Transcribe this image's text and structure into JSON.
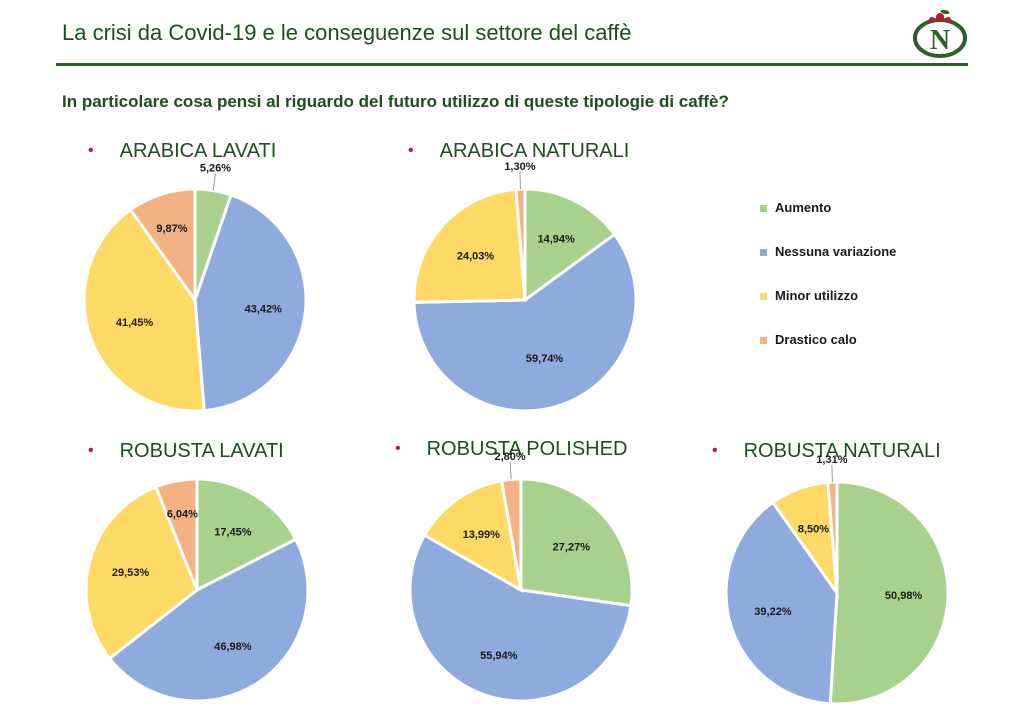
{
  "header": {
    "title": "La crisi da Covid-19 e le conseguenze sul settore del caffè",
    "question": "In particolare cosa pensi al riguardo del futuro utilizzo di queste tipologie di caffè?",
    "logo_text": "N",
    "bullet": "•"
  },
  "colors": {
    "Aumento": "#a9d18e",
    "Nessuna variazione": "#8faadc",
    "Minor utilizzo": "#ffd966",
    "Drastico calo": "#f4b183",
    "title": "#1e4d1e",
    "bullet": "#c0152b"
  },
  "legend": [
    "Aumento",
    "Nessuna variazione",
    "Minor utilizzo",
    "Drastico calo"
  ],
  "chart_data": [
    {
      "type": "pie",
      "title": "ARABICA LAVATI",
      "categories": [
        "Aumento",
        "Nessuna variazione",
        "Minor utilizzo",
        "Drastico calo"
      ],
      "values": [
        5.26,
        43.42,
        41.45,
        9.87
      ],
      "labels": [
        "5,26%",
        "43,42%",
        "41,45%",
        "9,87%"
      ]
    },
    {
      "type": "pie",
      "title": "ARABICA NATURALI",
      "categories": [
        "Aumento",
        "Nessuna variazione",
        "Minor utilizzo",
        "Drastico calo"
      ],
      "values": [
        14.94,
        59.74,
        24.03,
        1.3
      ],
      "labels": [
        "14,94%",
        "59,74%",
        "24,03%",
        "1,30%"
      ]
    },
    {
      "type": "pie",
      "title": "ROBUSTA LAVATI",
      "categories": [
        "Aumento",
        "Nessuna variazione",
        "Minor utilizzo",
        "Drastico calo"
      ],
      "values": [
        17.45,
        46.98,
        29.53,
        6.04
      ],
      "labels": [
        "17,45%",
        "46,98%",
        "29,53%",
        "6,04%"
      ]
    },
    {
      "type": "pie",
      "title": "ROBUSTA POLISHED",
      "categories": [
        "Aumento",
        "Nessuna variazione",
        "Minor utilizzo",
        "Drastico calo"
      ],
      "values": [
        27.27,
        55.94,
        13.99,
        2.8
      ],
      "labels": [
        "27,27%",
        "55,94%",
        "13,99%",
        "2,80%"
      ]
    },
    {
      "type": "pie",
      "title": "ROBUSTA NATURALI",
      "categories": [
        "Aumento",
        "Nessuna variazione",
        "Minor utilizzo",
        "Drastico calo"
      ],
      "values": [
        50.98,
        39.22,
        8.5,
        1.31
      ],
      "labels": [
        "50,98%",
        "39,22%",
        "8,50%",
        "1,31%"
      ]
    }
  ]
}
